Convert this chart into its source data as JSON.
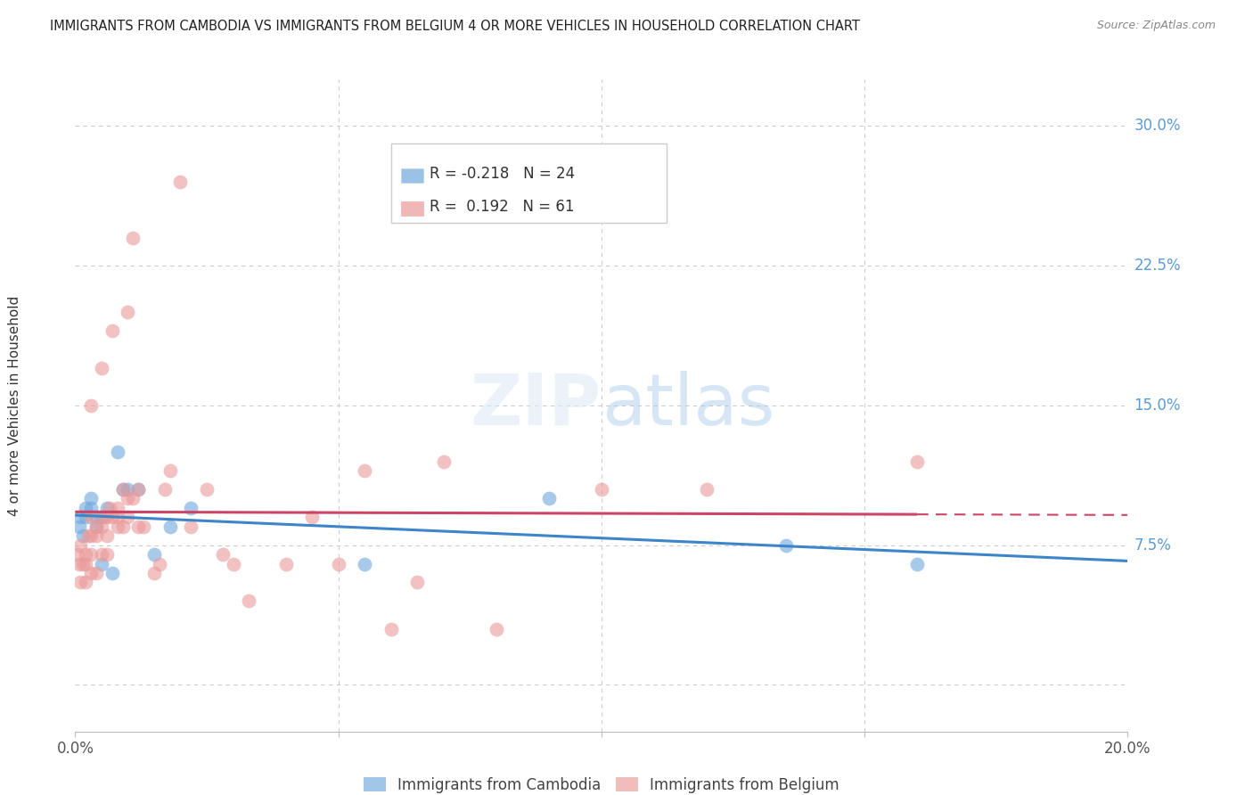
{
  "title": "IMMIGRANTS FROM CAMBODIA VS IMMIGRANTS FROM BELGIUM 4 OR MORE VEHICLES IN HOUSEHOLD CORRELATION CHART",
  "source": "Source: ZipAtlas.com",
  "ylabel": "4 or more Vehicles in Household",
  "ytick_vals": [
    0.0,
    0.075,
    0.15,
    0.225,
    0.3
  ],
  "ytick_labels": [
    "",
    "7.5%",
    "15.0%",
    "22.5%",
    "30.0%"
  ],
  "xlim": [
    0.0,
    0.2
  ],
  "ylim": [
    -0.025,
    0.325
  ],
  "background_color": "#ffffff",
  "grid_color": "#cccccc",
  "cambodia_color": "#6fa8dc",
  "cambodia_line_color": "#3d85c8",
  "belgium_color": "#ea9999",
  "belgium_line_color": "#cc4466",
  "cambodia_label": "Immigrants from Cambodia",
  "belgium_label": "Immigrants from Belgium",
  "cambodia_R": "-0.218",
  "cambodia_N": "24",
  "belgium_R": "0.192",
  "belgium_N": "61",
  "cambodia_scatter_x": [
    0.0008,
    0.001,
    0.0015,
    0.002,
    0.002,
    0.003,
    0.003,
    0.004,
    0.004,
    0.005,
    0.005,
    0.006,
    0.007,
    0.008,
    0.009,
    0.01,
    0.012,
    0.015,
    0.018,
    0.022,
    0.055,
    0.09,
    0.135,
    0.16
  ],
  "cambodia_scatter_y": [
    0.085,
    0.09,
    0.08,
    0.09,
    0.095,
    0.095,
    0.1,
    0.085,
    0.09,
    0.09,
    0.065,
    0.095,
    0.06,
    0.125,
    0.105,
    0.105,
    0.105,
    0.07,
    0.085,
    0.095,
    0.065,
    0.1,
    0.075,
    0.065
  ],
  "belgium_scatter_x": [
    0.0005,
    0.0008,
    0.001,
    0.001,
    0.0015,
    0.002,
    0.002,
    0.002,
    0.0025,
    0.003,
    0.003,
    0.003,
    0.003,
    0.003,
    0.004,
    0.004,
    0.004,
    0.005,
    0.005,
    0.005,
    0.0055,
    0.006,
    0.006,
    0.006,
    0.0065,
    0.007,
    0.007,
    0.008,
    0.008,
    0.008,
    0.009,
    0.009,
    0.01,
    0.01,
    0.01,
    0.011,
    0.011,
    0.012,
    0.012,
    0.013,
    0.015,
    0.016,
    0.017,
    0.018,
    0.02,
    0.022,
    0.025,
    0.028,
    0.03,
    0.033,
    0.04,
    0.045,
    0.05,
    0.055,
    0.06,
    0.065,
    0.07,
    0.08,
    0.1,
    0.12,
    0.16
  ],
  "belgium_scatter_y": [
    0.07,
    0.065,
    0.075,
    0.055,
    0.065,
    0.055,
    0.065,
    0.07,
    0.08,
    0.06,
    0.07,
    0.08,
    0.09,
    0.15,
    0.06,
    0.08,
    0.085,
    0.07,
    0.085,
    0.17,
    0.09,
    0.07,
    0.08,
    0.09,
    0.095,
    0.09,
    0.19,
    0.085,
    0.09,
    0.095,
    0.085,
    0.105,
    0.09,
    0.1,
    0.2,
    0.1,
    0.24,
    0.085,
    0.105,
    0.085,
    0.06,
    0.065,
    0.105,
    0.115,
    0.27,
    0.085,
    0.105,
    0.07,
    0.065,
    0.045,
    0.065,
    0.09,
    0.065,
    0.115,
    0.03,
    0.055,
    0.12,
    0.03,
    0.105,
    0.105,
    0.12
  ]
}
